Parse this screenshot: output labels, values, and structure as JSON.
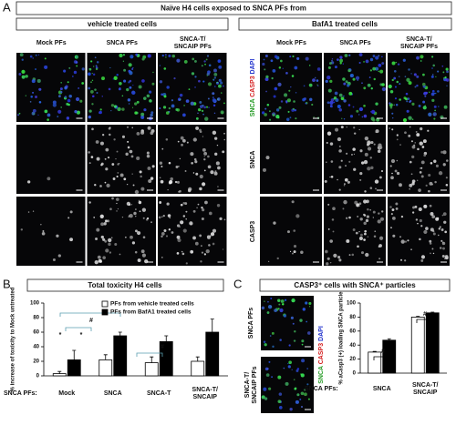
{
  "panel_labels": [
    "A",
    "B",
    "C"
  ],
  "panel_a": {
    "title": "Naïve H4 cells exposed to SNCA PFs from",
    "groups": [
      "vehicle treated cells",
      "BafA1 treated cells"
    ],
    "columns": [
      "Mock PFs",
      "SNCA PFs",
      "SNCA-T/ SNCAIP PFs"
    ],
    "channel_label": [
      "SNCA",
      "CASP3",
      "DAPI"
    ],
    "row_labels": [
      "SNCA",
      "CASP3"
    ]
  },
  "panel_c": {
    "rows": [
      "SNCA PFs",
      "SNCA-T/ SNCAIP PFs"
    ],
    "channel_label": [
      "SNCA",
      "CASP3",
      "DAPI"
    ]
  },
  "chart_data": [
    {
      "type": "bar",
      "title": "Total toxicity H4 cells",
      "y_label": "% increase of toxicity to Mock untreated",
      "x_label": "SNCA PFs:",
      "categories": [
        "Mock",
        "SNCA",
        "SNCA-T",
        "SNCA-T/ SNCAIP"
      ],
      "series": [
        {
          "name": "PFs from  vehicle treated cells",
          "color": "#ffffff",
          "values": [
            3,
            22,
            18,
            20
          ],
          "errors": [
            3,
            7,
            8,
            6
          ]
        },
        {
          "name": "PFs from BafA1 treated cells",
          "color": "#000000",
          "values": [
            22,
            55,
            47,
            60
          ],
          "errors": [
            13,
            5,
            8,
            18
          ]
        }
      ],
      "ylim": [
        0,
        100
      ],
      "yticks": [
        0,
        20,
        40,
        60,
        80,
        100
      ],
      "annotations": [
        "#",
        "#",
        "*",
        "*"
      ],
      "legend": "top"
    },
    {
      "type": "bar",
      "title": "CASP3⁺ cells with SNCA⁺ particles",
      "y_label": "% aCasp3 (+) loading SNCA particle",
      "x_label": "SNCA PFs:",
      "categories": [
        "SNCA",
        "SNCA-T/ SNCAIP"
      ],
      "series": [
        {
          "color": "#ffffff",
          "values": [
            30,
            80
          ],
          "errors": [
            1,
            1
          ]
        },
        {
          "color": "#000000",
          "values": [
            47,
            86
          ],
          "errors": [
            2,
            1
          ]
        }
      ],
      "ylim": [
        0,
        100
      ],
      "yticks": [
        0,
        20,
        40,
        60,
        80,
        100
      ],
      "annotations": [
        "#",
        "#"
      ]
    }
  ]
}
